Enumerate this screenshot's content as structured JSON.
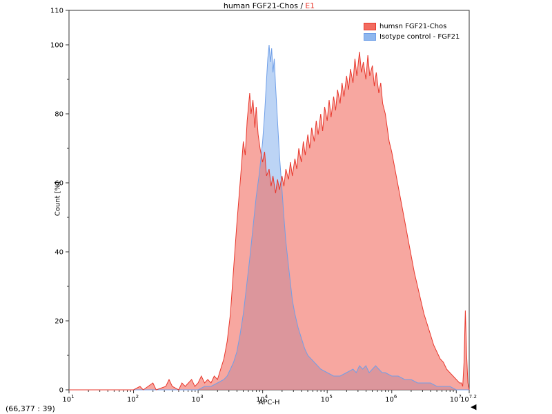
{
  "title": {
    "main": "human FGF21-Chos /",
    "sample": "E1"
  },
  "colors": {
    "accent_red": "#e8372c",
    "axis": "#333333",
    "text": "#000000"
  },
  "status": {
    "coords": "(66,377 : 39)"
  },
  "icons": {
    "left_triangle": "◀"
  },
  "chart_data": {
    "type": "area",
    "subtype": "flow-cytometry-histogram-overlay",
    "title": "human FGF21-Chos / E1",
    "xlabel": "APC-H",
    "ylabel": "Count [%]",
    "x_scale": "log10",
    "xlim": [
      1,
      7.2
    ],
    "ylim": [
      0,
      110
    ],
    "x_tick_exponents": [
      1,
      2,
      3,
      4,
      5,
      6,
      7,
      7.2
    ],
    "y_tick_labels": [
      0,
      20,
      40,
      60,
      80,
      100,
      110
    ],
    "y_minor_step": 10,
    "grid": false,
    "legend_position": "top-right",
    "legend": [
      {
        "label": "humsn FGF21-Chos",
        "fill": "#f26c60",
        "stroke": "#e8372c"
      },
      {
        "label": "Isotype control - FGF21",
        "fill": "#8fb7ee",
        "stroke": "#6f9fe8"
      }
    ],
    "series": [
      {
        "name": "Isotype control - FGF21",
        "stroke": "#6f9fe8",
        "fill": "#8fb7ee",
        "fill_opacity": 0.6,
        "points": [
          [
            1.0,
            0
          ],
          [
            2.0,
            0
          ],
          [
            3.0,
            0
          ],
          [
            3.1,
            1
          ],
          [
            3.2,
            1
          ],
          [
            3.3,
            2
          ],
          [
            3.4,
            3
          ],
          [
            3.45,
            4
          ],
          [
            3.5,
            6
          ],
          [
            3.55,
            8
          ],
          [
            3.6,
            11
          ],
          [
            3.65,
            16
          ],
          [
            3.7,
            22
          ],
          [
            3.75,
            30
          ],
          [
            3.8,
            38
          ],
          [
            3.85,
            47
          ],
          [
            3.9,
            56
          ],
          [
            3.95,
            63
          ],
          [
            4.0,
            72
          ],
          [
            4.03,
            80
          ],
          [
            4.06,
            90
          ],
          [
            4.08,
            96
          ],
          [
            4.1,
            100
          ],
          [
            4.12,
            95
          ],
          [
            4.14,
            99
          ],
          [
            4.16,
            92
          ],
          [
            4.18,
            96
          ],
          [
            4.2,
            88
          ],
          [
            4.23,
            78
          ],
          [
            4.26,
            68
          ],
          [
            4.3,
            58
          ],
          [
            4.33,
            50
          ],
          [
            4.36,
            43
          ],
          [
            4.4,
            36
          ],
          [
            4.43,
            31
          ],
          [
            4.46,
            26
          ],
          [
            4.5,
            22
          ],
          [
            4.55,
            18
          ],
          [
            4.6,
            15
          ],
          [
            4.65,
            12
          ],
          [
            4.7,
            10
          ],
          [
            4.75,
            9
          ],
          [
            4.8,
            8
          ],
          [
            4.85,
            7
          ],
          [
            4.9,
            6
          ],
          [
            5.0,
            5
          ],
          [
            5.1,
            4
          ],
          [
            5.2,
            4
          ],
          [
            5.3,
            5
          ],
          [
            5.4,
            6
          ],
          [
            5.45,
            5
          ],
          [
            5.5,
            7
          ],
          [
            5.55,
            6
          ],
          [
            5.6,
            7
          ],
          [
            5.65,
            5
          ],
          [
            5.7,
            6
          ],
          [
            5.75,
            7
          ],
          [
            5.8,
            6
          ],
          [
            5.85,
            5
          ],
          [
            5.9,
            5
          ],
          [
            6.0,
            4
          ],
          [
            6.1,
            4
          ],
          [
            6.2,
            3
          ],
          [
            6.3,
            3
          ],
          [
            6.4,
            2
          ],
          [
            6.5,
            2
          ],
          [
            6.6,
            2
          ],
          [
            6.7,
            1
          ],
          [
            6.8,
            1
          ],
          [
            6.9,
            1
          ],
          [
            7.0,
            0
          ],
          [
            7.2,
            0
          ]
        ]
      },
      {
        "name": "humsn FGF21-Chos",
        "stroke": "#e8372c",
        "fill": "#f26c60",
        "fill_opacity": 0.6,
        "points": [
          [
            1.0,
            0
          ],
          [
            1.5,
            0
          ],
          [
            2.0,
            0
          ],
          [
            2.1,
            1
          ],
          [
            2.15,
            0
          ],
          [
            2.3,
            2
          ],
          [
            2.35,
            0
          ],
          [
            2.5,
            1
          ],
          [
            2.55,
            3
          ],
          [
            2.6,
            1
          ],
          [
            2.7,
            0
          ],
          [
            2.75,
            2
          ],
          [
            2.8,
            1
          ],
          [
            2.9,
            3
          ],
          [
            2.95,
            1
          ],
          [
            3.0,
            2
          ],
          [
            3.05,
            4
          ],
          [
            3.1,
            2
          ],
          [
            3.15,
            3
          ],
          [
            3.2,
            2
          ],
          [
            3.25,
            4
          ],
          [
            3.3,
            3
          ],
          [
            3.35,
            6
          ],
          [
            3.4,
            9
          ],
          [
            3.45,
            14
          ],
          [
            3.5,
            22
          ],
          [
            3.55,
            35
          ],
          [
            3.6,
            48
          ],
          [
            3.63,
            55
          ],
          [
            3.66,
            62
          ],
          [
            3.7,
            72
          ],
          [
            3.73,
            68
          ],
          [
            3.76,
            78
          ],
          [
            3.8,
            86
          ],
          [
            3.82,
            80
          ],
          [
            3.85,
            84
          ],
          [
            3.88,
            76
          ],
          [
            3.9,
            82
          ],
          [
            3.93,
            74
          ],
          [
            3.96,
            70
          ],
          [
            4.0,
            66
          ],
          [
            4.03,
            69
          ],
          [
            4.06,
            62
          ],
          [
            4.1,
            64
          ],
          [
            4.13,
            59
          ],
          [
            4.16,
            62
          ],
          [
            4.2,
            57
          ],
          [
            4.23,
            61
          ],
          [
            4.26,
            58
          ],
          [
            4.3,
            62
          ],
          [
            4.33,
            59
          ],
          [
            4.36,
            64
          ],
          [
            4.4,
            61
          ],
          [
            4.43,
            66
          ],
          [
            4.46,
            62
          ],
          [
            4.5,
            67
          ],
          [
            4.53,
            64
          ],
          [
            4.56,
            70
          ],
          [
            4.6,
            66
          ],
          [
            4.63,
            72
          ],
          [
            4.66,
            68
          ],
          [
            4.7,
            74
          ],
          [
            4.73,
            70
          ],
          [
            4.76,
            76
          ],
          [
            4.8,
            72
          ],
          [
            4.83,
            78
          ],
          [
            4.86,
            74
          ],
          [
            4.9,
            80
          ],
          [
            4.93,
            75
          ],
          [
            4.96,
            82
          ],
          [
            5.0,
            78
          ],
          [
            5.03,
            84
          ],
          [
            5.06,
            79
          ],
          [
            5.1,
            85
          ],
          [
            5.13,
            81
          ],
          [
            5.16,
            87
          ],
          [
            5.2,
            83
          ],
          [
            5.23,
            89
          ],
          [
            5.26,
            85
          ],
          [
            5.3,
            91
          ],
          [
            5.33,
            87
          ],
          [
            5.36,
            93
          ],
          [
            5.4,
            89
          ],
          [
            5.43,
            96
          ],
          [
            5.46,
            91
          ],
          [
            5.5,
            98
          ],
          [
            5.53,
            92
          ],
          [
            5.56,
            95
          ],
          [
            5.6,
            90
          ],
          [
            5.63,
            97
          ],
          [
            5.66,
            91
          ],
          [
            5.7,
            94
          ],
          [
            5.73,
            88
          ],
          [
            5.76,
            92
          ],
          [
            5.8,
            86
          ],
          [
            5.83,
            89
          ],
          [
            5.86,
            83
          ],
          [
            5.9,
            80
          ],
          [
            5.93,
            76
          ],
          [
            5.96,
            72
          ],
          [
            6.0,
            69
          ],
          [
            6.05,
            64
          ],
          [
            6.1,
            59
          ],
          [
            6.15,
            54
          ],
          [
            6.2,
            49
          ],
          [
            6.25,
            44
          ],
          [
            6.3,
            39
          ],
          [
            6.35,
            34
          ],
          [
            6.4,
            30
          ],
          [
            6.45,
            26
          ],
          [
            6.5,
            22
          ],
          [
            6.55,
            19
          ],
          [
            6.6,
            16
          ],
          [
            6.65,
            13
          ],
          [
            6.7,
            11
          ],
          [
            6.75,
            9
          ],
          [
            6.8,
            8
          ],
          [
            6.85,
            6
          ],
          [
            6.9,
            5
          ],
          [
            6.95,
            4
          ],
          [
            7.0,
            3
          ],
          [
            7.05,
            2
          ],
          [
            7.08,
            2
          ],
          [
            7.1,
            1
          ],
          [
            7.12,
            8
          ],
          [
            7.14,
            23
          ],
          [
            7.16,
            10
          ],
          [
            7.18,
            2
          ],
          [
            7.2,
            0
          ]
        ]
      }
    ]
  }
}
